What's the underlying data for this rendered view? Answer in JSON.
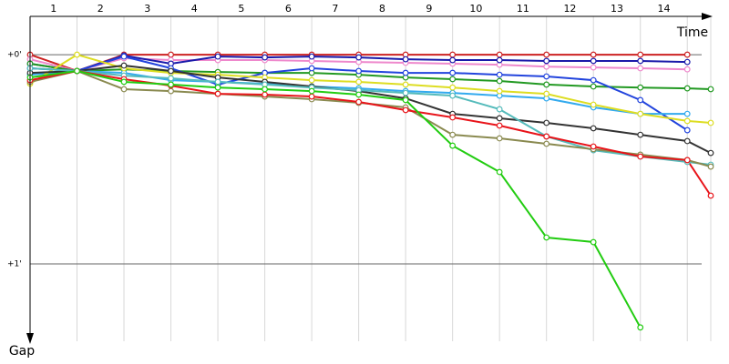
{
  "chart_data": {
    "type": "line",
    "x_axis_label": "Time",
    "y_axis_label": "Gap",
    "xlim": [
      0,
      14.5
    ],
    "ylim": [
      -0.183,
      1.37
    ],
    "y_inverted": true,
    "grid": true,
    "xticks": [
      {
        "value": 0.5,
        "label": "1"
      },
      {
        "value": 1.5,
        "label": "2"
      },
      {
        "value": 2.5,
        "label": "3"
      },
      {
        "value": 3.5,
        "label": "4"
      },
      {
        "value": 4.5,
        "label": "5"
      },
      {
        "value": 5.5,
        "label": "6"
      },
      {
        "value": 6.5,
        "label": "7"
      },
      {
        "value": 7.5,
        "label": "8"
      },
      {
        "value": 8.5,
        "label": "9"
      },
      {
        "value": 9.5,
        "label": "10"
      },
      {
        "value": 10.5,
        "label": "11"
      },
      {
        "value": 11.5,
        "label": "12"
      },
      {
        "value": 12.5,
        "label": "13"
      },
      {
        "value": 13.5,
        "label": "14"
      }
    ],
    "yticks": [
      {
        "value": 0,
        "label": "+0'"
      },
      {
        "value": 1,
        "label": "+1'"
      }
    ],
    "x": [
      0,
      1,
      2,
      3,
      4,
      5,
      6,
      7,
      8,
      9,
      10,
      11,
      12,
      13,
      14,
      14.5
    ],
    "series": [
      {
        "color": "#cc2222",
        "values": [
          0.0,
          0.078,
          0.0,
          0.0,
          0.0,
          0.0,
          0.0,
          0.0,
          0.0,
          0.0,
          0.0,
          0.0,
          0.0,
          0.0,
          0.0,
          null
        ]
      },
      {
        "color": "#ee88cc",
        "values": [
          0.022,
          0.078,
          0.017,
          0.026,
          0.026,
          0.026,
          0.03,
          0.035,
          0.039,
          0.043,
          0.048,
          0.057,
          0.061,
          0.065,
          0.07,
          null
        ]
      },
      {
        "color": "#1a1aaa",
        "values": [
          0.043,
          0.078,
          0.004,
          0.043,
          0.009,
          0.013,
          0.009,
          0.013,
          0.022,
          0.026,
          0.026,
          0.03,
          0.03,
          0.03,
          0.035,
          null
        ]
      },
      {
        "color": "#229922",
        "values": [
          0.043,
          0.078,
          0.07,
          0.078,
          0.083,
          0.087,
          0.087,
          0.096,
          0.109,
          0.117,
          0.126,
          0.143,
          0.152,
          0.157,
          0.161,
          0.165
        ]
      },
      {
        "color": "#2244dd",
        "values": [
          0.065,
          0.078,
          0.009,
          0.065,
          0.143,
          0.087,
          0.065,
          0.078,
          0.087,
          0.087,
          0.096,
          0.104,
          0.122,
          0.217,
          0.361,
          null
        ]
      },
      {
        "color": "#33aaee",
        "values": [
          0.096,
          0.078,
          0.087,
          0.122,
          0.13,
          0.139,
          0.152,
          0.161,
          0.174,
          0.183,
          0.196,
          0.209,
          0.252,
          0.283,
          0.283,
          null
        ]
      },
      {
        "color": "#dddd22",
        "values": [
          0.139,
          0.0,
          0.065,
          0.087,
          0.096,
          0.109,
          0.122,
          0.13,
          0.143,
          0.157,
          0.174,
          0.187,
          0.239,
          0.283,
          0.317,
          0.326
        ]
      },
      {
        "color": "#333333",
        "values": [
          0.087,
          0.078,
          0.052,
          0.078,
          0.109,
          0.13,
          0.152,
          0.174,
          0.209,
          0.283,
          0.304,
          0.326,
          0.352,
          0.383,
          0.413,
          0.47
        ]
      },
      {
        "color": "#55bbbb",
        "values": [
          0.065,
          0.078,
          0.1,
          0.113,
          0.13,
          0.143,
          0.157,
          0.17,
          0.183,
          0.196,
          0.261,
          0.391,
          0.457,
          0.487,
          0.513,
          0.526
        ]
      },
      {
        "color": "#8a8a50",
        "values": [
          0.13,
          0.078,
          0.165,
          0.174,
          0.187,
          0.2,
          0.213,
          0.23,
          0.252,
          0.383,
          0.4,
          0.426,
          0.452,
          0.478,
          0.504,
          0.535
        ]
      },
      {
        "color": "#e8141a",
        "values": [
          0.122,
          0.078,
          0.117,
          0.148,
          0.187,
          0.191,
          0.2,
          0.226,
          0.265,
          0.3,
          0.339,
          0.391,
          0.439,
          0.487,
          0.504,
          0.674
        ]
      },
      {
        "color": "#22cc11",
        "values": [
          0.109,
          0.078,
          0.13,
          0.143,
          0.157,
          0.165,
          0.174,
          0.191,
          0.217,
          0.435,
          0.561,
          0.874,
          0.896,
          1.304,
          null,
          null
        ]
      }
    ]
  }
}
